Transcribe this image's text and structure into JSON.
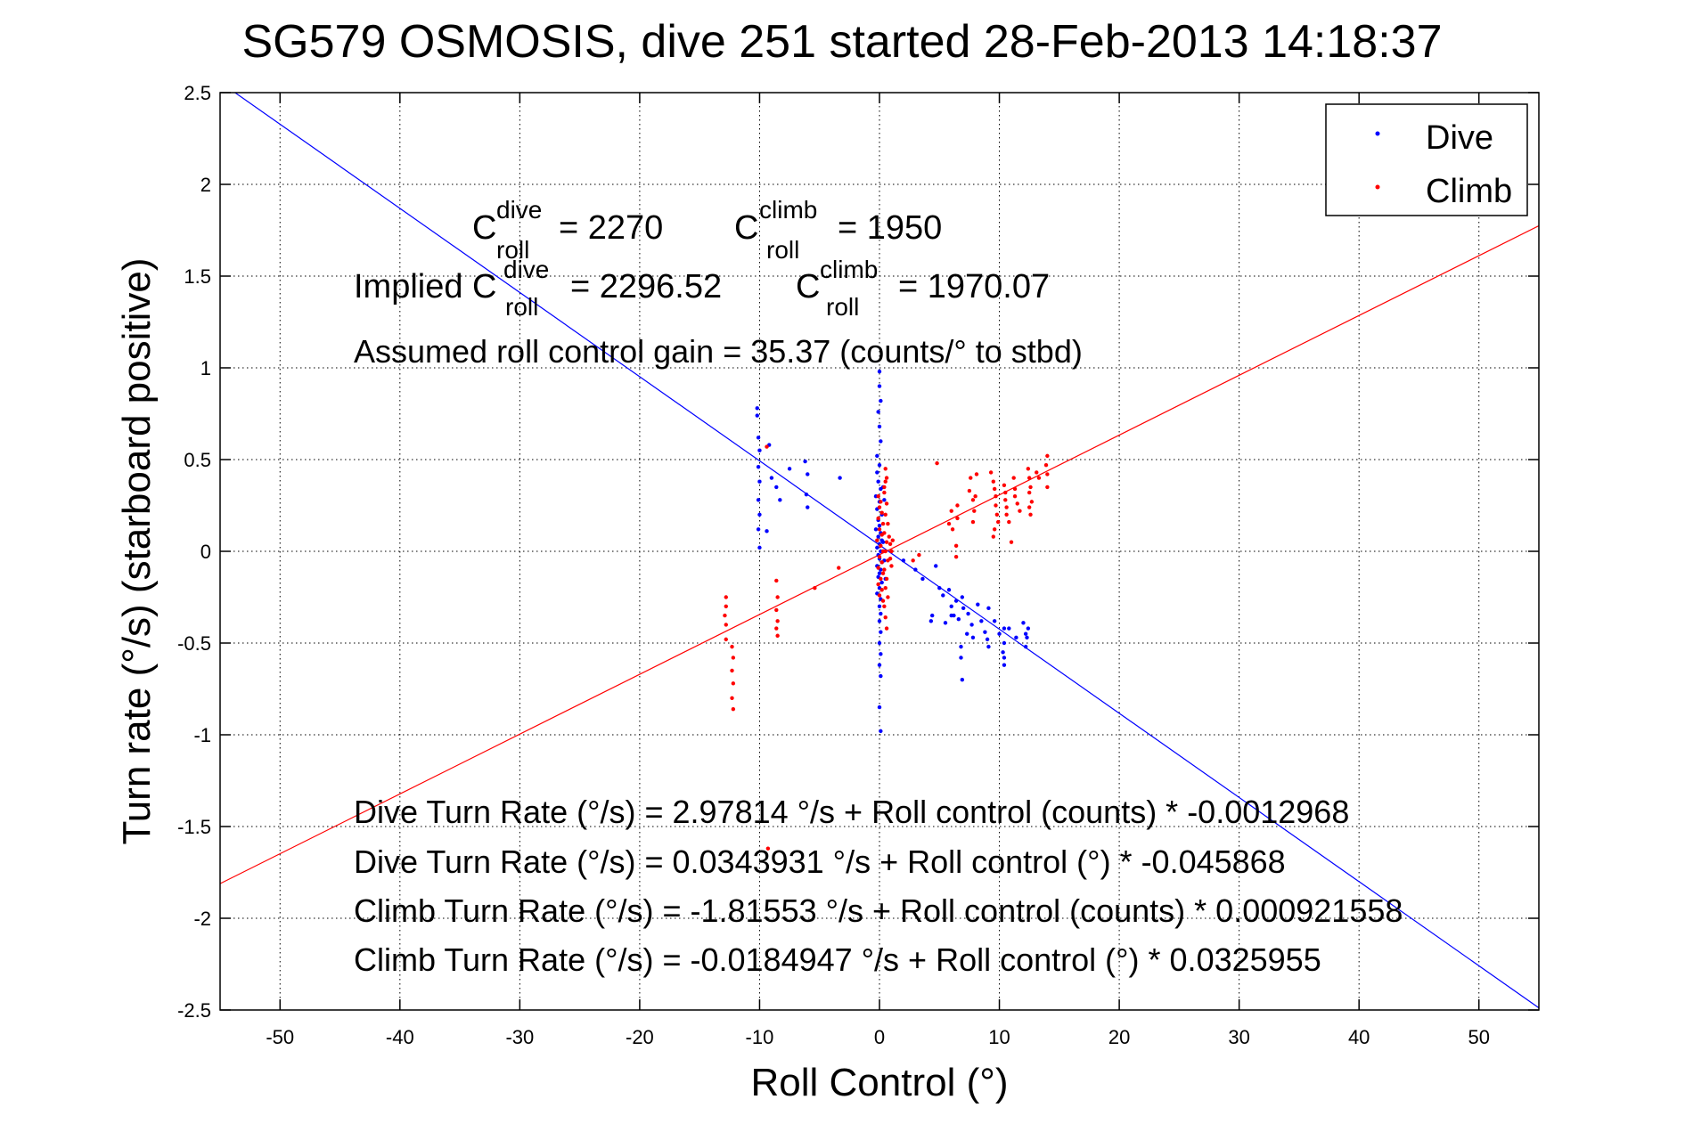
{
  "chart_data": {
    "type": "scatter",
    "title": "SG579 OSMOSIS, dive 251 started 28-Feb-2013 14:18:37",
    "xlabel": "Roll Control (°)",
    "ylabel": "Turn rate (°/s) (starboard positive)",
    "xlim": [
      -55,
      55
    ],
    "ylim": [
      -2.5,
      2.5
    ],
    "grid": true,
    "legend_position": "top-right",
    "xticks": [
      "-50",
      "-40",
      "-30",
      "-20",
      "-10",
      "0",
      "10",
      "20",
      "30",
      "40",
      "50"
    ],
    "yticks": [
      "-2.5",
      "-2",
      "-1.5",
      "-1",
      "-0.5",
      "0",
      "0.5",
      "1",
      "1.5",
      "2",
      "2.5"
    ],
    "series": [
      {
        "name": "Dive",
        "color": "#0000ff",
        "fit": {
          "intercept": 0.0343931,
          "slope": -0.045868
        },
        "points": [
          [
            -10.2,
            0.78
          ],
          [
            -10.2,
            0.74
          ],
          [
            -10.1,
            0.62
          ],
          [
            -10.0,
            0.55
          ],
          [
            -10.1,
            0.46
          ],
          [
            -10.0,
            0.38
          ],
          [
            -10.1,
            0.28
          ],
          [
            -10.0,
            0.2
          ],
          [
            -10.1,
            0.12
          ],
          [
            -10.0,
            0.02
          ],
          [
            -9.2,
            0.58
          ],
          [
            -8.6,
            0.35
          ],
          [
            -8.3,
            0.28
          ],
          [
            -9.4,
            0.11
          ],
          [
            -9.0,
            0.4
          ],
          [
            -7.5,
            0.45
          ],
          [
            -6.2,
            0.49
          ],
          [
            -6.0,
            0.42
          ],
          [
            -6.1,
            0.31
          ],
          [
            -6.0,
            0.24
          ],
          [
            -3.3,
            0.4
          ],
          [
            0.0,
            0.98
          ],
          [
            0.0,
            0.9
          ],
          [
            0.1,
            0.82
          ],
          [
            -0.1,
            0.76
          ],
          [
            0.0,
            0.68
          ],
          [
            0.1,
            0.6
          ],
          [
            -0.2,
            0.52
          ],
          [
            0.0,
            0.47
          ],
          [
            -0.2,
            0.43
          ],
          [
            -0.1,
            0.38
          ],
          [
            0.1,
            0.34
          ],
          [
            -0.3,
            0.3
          ],
          [
            0.0,
            0.27
          ],
          [
            -0.2,
            0.23
          ],
          [
            0.2,
            0.2
          ],
          [
            -0.1,
            0.17
          ],
          [
            0.0,
            0.14
          ],
          [
            -0.3,
            0.12
          ],
          [
            0.1,
            0.1
          ],
          [
            -0.1,
            0.08
          ],
          [
            0.2,
            0.06
          ],
          [
            0.0,
            0.04
          ],
          [
            -0.2,
            0.02
          ],
          [
            0.1,
            0.0
          ],
          [
            -0.1,
            -0.02
          ],
          [
            0.0,
            -0.04
          ],
          [
            0.2,
            -0.06
          ],
          [
            -0.2,
            -0.08
          ],
          [
            0.1,
            -0.1
          ],
          [
            0.0,
            -0.12
          ],
          [
            -0.1,
            -0.14
          ],
          [
            0.2,
            -0.17
          ],
          [
            0.0,
            -0.2
          ],
          [
            -0.2,
            -0.23
          ],
          [
            0.1,
            -0.26
          ],
          [
            0.0,
            -0.3
          ],
          [
            0.1,
            -0.34
          ],
          [
            0.0,
            -0.38
          ],
          [
            0.1,
            -0.44
          ],
          [
            0.0,
            -0.5
          ],
          [
            0.1,
            -0.56
          ],
          [
            0.0,
            -0.62
          ],
          [
            0.1,
            -0.68
          ],
          [
            0.0,
            -0.85
          ],
          [
            0.1,
            -0.98
          ],
          [
            0.3,
            0.35
          ],
          [
            0.4,
            0.28
          ],
          [
            0.3,
            0.05
          ],
          [
            0.4,
            -0.05
          ],
          [
            0.5,
            -0.15
          ],
          [
            2.0,
            -0.05
          ],
          [
            3.0,
            -0.1
          ],
          [
            3.6,
            -0.15
          ],
          [
            4.7,
            -0.08
          ],
          [
            5.0,
            -0.2
          ],
          [
            5.3,
            -0.24
          ],
          [
            5.8,
            -0.21
          ],
          [
            6.0,
            -0.3
          ],
          [
            6.4,
            -0.27
          ],
          [
            6.9,
            -0.25
          ],
          [
            6.2,
            -0.35
          ],
          [
            6.6,
            -0.37
          ],
          [
            7.0,
            -0.31
          ],
          [
            7.4,
            -0.34
          ],
          [
            7.7,
            -0.4
          ],
          [
            8.2,
            -0.29
          ],
          [
            8.5,
            -0.38
          ],
          [
            8.8,
            -0.44
          ],
          [
            9.1,
            -0.31
          ],
          [
            9.6,
            -0.38
          ],
          [
            10.0,
            -0.45
          ],
          [
            10.4,
            -0.5
          ],
          [
            10.8,
            -0.42
          ],
          [
            11.4,
            -0.47
          ],
          [
            12.0,
            -0.39
          ],
          [
            12.2,
            -0.45
          ],
          [
            5.5,
            -0.39
          ],
          [
            6.0,
            -0.35
          ],
          [
            6.8,
            -0.52
          ],
          [
            6.8,
            -0.58
          ],
          [
            6.9,
            -0.7
          ],
          [
            7.3,
            -0.45
          ],
          [
            7.8,
            -0.47
          ],
          [
            9.0,
            -0.48
          ],
          [
            9.1,
            -0.52
          ],
          [
            10.4,
            -0.58
          ],
          [
            10.4,
            -0.62
          ],
          [
            10.3,
            -0.55
          ],
          [
            10.4,
            -0.42
          ],
          [
            12.2,
            -0.52
          ],
          [
            12.3,
            -0.47
          ],
          [
            12.4,
            -0.42
          ],
          [
            4.3,
            -0.38
          ],
          [
            4.4,
            -0.35
          ]
        ]
      },
      {
        "name": "Climb",
        "color": "#ff0000",
        "fit": {
          "intercept": -0.0184947,
          "slope": 0.0325955
        },
        "points": [
          [
            -12.8,
            -0.25
          ],
          [
            -12.8,
            -0.3
          ],
          [
            -12.9,
            -0.35
          ],
          [
            -12.8,
            -0.4
          ],
          [
            -12.8,
            -0.48
          ],
          [
            -12.3,
            -0.52
          ],
          [
            -12.2,
            -0.58
          ],
          [
            -12.3,
            -0.65
          ],
          [
            -12.2,
            -0.72
          ],
          [
            -12.3,
            -0.8
          ],
          [
            -12.2,
            -0.86
          ],
          [
            -8.6,
            -0.16
          ],
          [
            -8.5,
            -0.25
          ],
          [
            -8.6,
            -0.32
          ],
          [
            -8.5,
            -0.38
          ],
          [
            -8.6,
            -0.42
          ],
          [
            -8.5,
            -0.46
          ],
          [
            -9.4,
            0.57
          ],
          [
            -5.4,
            -0.2
          ],
          [
            -3.4,
            -0.09
          ],
          [
            -9.3,
            -1.62
          ],
          [
            -0.1,
            0.3
          ],
          [
            0.1,
            0.27
          ],
          [
            0.0,
            0.24
          ],
          [
            0.2,
            0.21
          ],
          [
            -0.1,
            0.18
          ],
          [
            0.3,
            0.15
          ],
          [
            0.0,
            0.12
          ],
          [
            0.2,
            0.09
          ],
          [
            -0.2,
            0.06
          ],
          [
            0.1,
            0.03
          ],
          [
            0.3,
            0.0
          ],
          [
            0.0,
            -0.03
          ],
          [
            0.2,
            -0.06
          ],
          [
            -0.1,
            -0.09
          ],
          [
            0.3,
            -0.12
          ],
          [
            0.1,
            -0.15
          ],
          [
            -0.1,
            -0.18
          ],
          [
            0.2,
            -0.21
          ],
          [
            0.0,
            -0.24
          ],
          [
            0.3,
            -0.27
          ],
          [
            0.5,
            0.45
          ],
          [
            0.5,
            0.38
          ],
          [
            0.4,
            0.32
          ],
          [
            0.6,
            0.26
          ],
          [
            0.5,
            0.2
          ],
          [
            0.7,
            0.15
          ],
          [
            0.4,
            0.1
          ],
          [
            0.6,
            0.05
          ],
          [
            0.5,
            0.0
          ],
          [
            0.7,
            -0.05
          ],
          [
            0.4,
            -0.1
          ],
          [
            0.6,
            -0.15
          ],
          [
            0.5,
            -0.2
          ],
          [
            0.7,
            -0.25
          ],
          [
            0.4,
            -0.3
          ],
          [
            0.5,
            -0.36
          ],
          [
            0.6,
            -0.42
          ],
          [
            0.4,
            0.35
          ],
          [
            0.6,
            0.4
          ],
          [
            0.8,
            0.08
          ],
          [
            0.9,
            0.04
          ],
          [
            1.0,
            0.0
          ],
          [
            0.9,
            -0.04
          ],
          [
            1.1,
            0.06
          ],
          [
            1.0,
            -0.08
          ],
          [
            2.8,
            -0.05
          ],
          [
            3.3,
            -0.02
          ],
          [
            4.8,
            0.48
          ],
          [
            5.8,
            0.15
          ],
          [
            6.0,
            0.22
          ],
          [
            6.1,
            0.12
          ],
          [
            6.4,
            0.03
          ],
          [
            6.4,
            -0.03
          ],
          [
            6.5,
            0.25
          ],
          [
            6.5,
            0.18
          ],
          [
            7.5,
            0.33
          ],
          [
            7.6,
            0.4
          ],
          [
            7.8,
            0.28
          ],
          [
            7.9,
            0.22
          ],
          [
            7.8,
            0.16
          ],
          [
            8.1,
            0.42
          ],
          [
            8.0,
            0.3
          ],
          [
            9.3,
            0.43
          ],
          [
            9.5,
            0.38
          ],
          [
            9.6,
            0.34
          ],
          [
            9.7,
            0.3
          ],
          [
            9.7,
            0.25
          ],
          [
            9.8,
            0.2
          ],
          [
            9.9,
            0.16
          ],
          [
            9.6,
            0.12
          ],
          [
            9.5,
            0.08
          ],
          [
            10.4,
            0.36
          ],
          [
            10.5,
            0.32
          ],
          [
            10.5,
            0.28
          ],
          [
            10.6,
            0.24
          ],
          [
            10.6,
            0.2
          ],
          [
            10.8,
            0.16
          ],
          [
            11.2,
            0.4
          ],
          [
            11.3,
            0.34
          ],
          [
            11.3,
            0.3
          ],
          [
            11.5,
            0.26
          ],
          [
            11.7,
            0.22
          ],
          [
            11.0,
            0.05
          ],
          [
            12.4,
            0.45
          ],
          [
            12.5,
            0.4
          ],
          [
            12.6,
            0.35
          ],
          [
            12.5,
            0.32
          ],
          [
            12.7,
            0.27
          ],
          [
            12.5,
            0.24
          ],
          [
            12.6,
            0.2
          ],
          [
            13.1,
            0.43
          ],
          [
            13.3,
            0.4
          ],
          [
            14.0,
            0.52
          ],
          [
            13.9,
            0.47
          ],
          [
            14.0,
            0.42
          ],
          [
            14.0,
            0.35
          ]
        ]
      }
    ],
    "annotations": {
      "c_dive_value": "= 2270",
      "c_climb_value": "= 1950",
      "implied_prefix": "Implied C",
      "implied_dive_value": "= 2296.52",
      "implied_climb_value": "= 1970.07",
      "sup_dive": "dive",
      "sup_climb": "climb",
      "sub_roll": "roll",
      "c_symbol": "C",
      "gain_line": "Assumed roll control gain = 35.37 (counts/° to stbd)",
      "fit_line_1": "Dive Turn Rate (°/s) = 2.97814 °/s + Roll control (counts) * -0.0012968",
      "fit_line_2": "Dive Turn Rate (°/s) = 0.0343931 °/s + Roll control (°) * -0.045868",
      "fit_line_3": "Climb Turn Rate (°/s) = -1.81553 °/s + Roll control (counts) * 0.000921558",
      "fit_line_4": "Climb Turn Rate (°/s) = -0.0184947 °/s + Roll control (°) * 0.0325955"
    }
  }
}
